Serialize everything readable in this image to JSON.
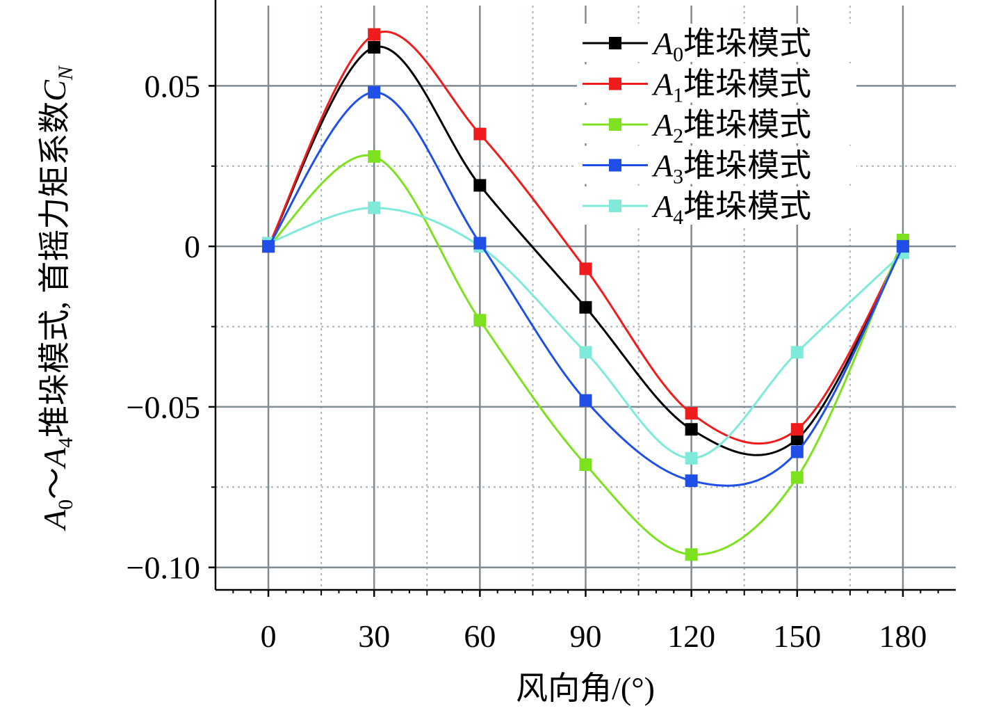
{
  "chart_data": {
    "type": "line",
    "title": "",
    "xlabel": "风向角/(°)",
    "ylabel": {
      "prefix_var": "A",
      "prefix_sub": "0",
      "tilde": "～",
      "mid_var": "A",
      "mid_sub": "4",
      "text": "堆垛模式, 首摇力矩系数",
      "end_var": "C",
      "end_sub": "N"
    },
    "x": [
      0,
      30,
      60,
      90,
      120,
      150,
      180
    ],
    "xlim": [
      -15,
      195
    ],
    "ylim": [
      -0.107,
      0.075
    ],
    "xticks": [
      0,
      30,
      60,
      90,
      120,
      150,
      180
    ],
    "xtick_labels": [
      "0",
      "30",
      "60",
      "90",
      "120",
      "150",
      "180"
    ],
    "yticks": [
      0.05,
      0,
      -0.05,
      -0.1
    ],
    "ytick_labels": [
      "0.05",
      "0",
      "−0.05",
      "−0.10"
    ],
    "grid": true,
    "legend_position": "top-right",
    "series": [
      {
        "name": "A0堆垛模式",
        "var": "A",
        "sub": "0",
        "suffix": "堆垛模式",
        "color": "#000000",
        "values": [
          0.0,
          0.062,
          0.019,
          -0.019,
          -0.057,
          -0.06,
          0.0
        ]
      },
      {
        "name": "A1堆垛模式",
        "var": "A",
        "sub": "1",
        "suffix": "堆垛模式",
        "color": "#ee1c1c",
        "values": [
          0.0,
          0.066,
          0.035,
          -0.007,
          -0.052,
          -0.057,
          0.0
        ]
      },
      {
        "name": "A2堆垛模式",
        "var": "A",
        "sub": "2",
        "suffix": "堆垛模式",
        "color": "#7ee11f",
        "values": [
          0.0,
          0.028,
          -0.023,
          -0.068,
          -0.096,
          -0.072,
          0.002
        ]
      },
      {
        "name": "A3堆垛模式",
        "var": "A",
        "sub": "3",
        "suffix": "堆垛模式",
        "color": "#1f4fe6",
        "values": [
          0.0,
          0.048,
          0.001,
          -0.048,
          -0.073,
          -0.064,
          0.0
        ]
      },
      {
        "name": "A4堆垛模式",
        "var": "A",
        "sub": "4",
        "suffix": "堆垛模式",
        "color": "#7fead9",
        "values": [
          0.001,
          0.012,
          0.0,
          -0.033,
          -0.066,
          -0.033,
          -0.002
        ]
      }
    ]
  }
}
